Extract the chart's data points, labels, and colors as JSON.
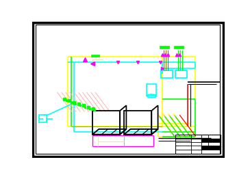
{
  "bg": "#ffffff",
  "black": "#000000",
  "cyan": "#00ffff",
  "yellow": "#ffff00",
  "green": "#00ff00",
  "magenta": "#ff00ff",
  "red": "#ff0000",
  "dark_red": "#cc0000",
  "pink": "#ffb0b0",
  "olive": "#808000",
  "lime": "#00cc00"
}
